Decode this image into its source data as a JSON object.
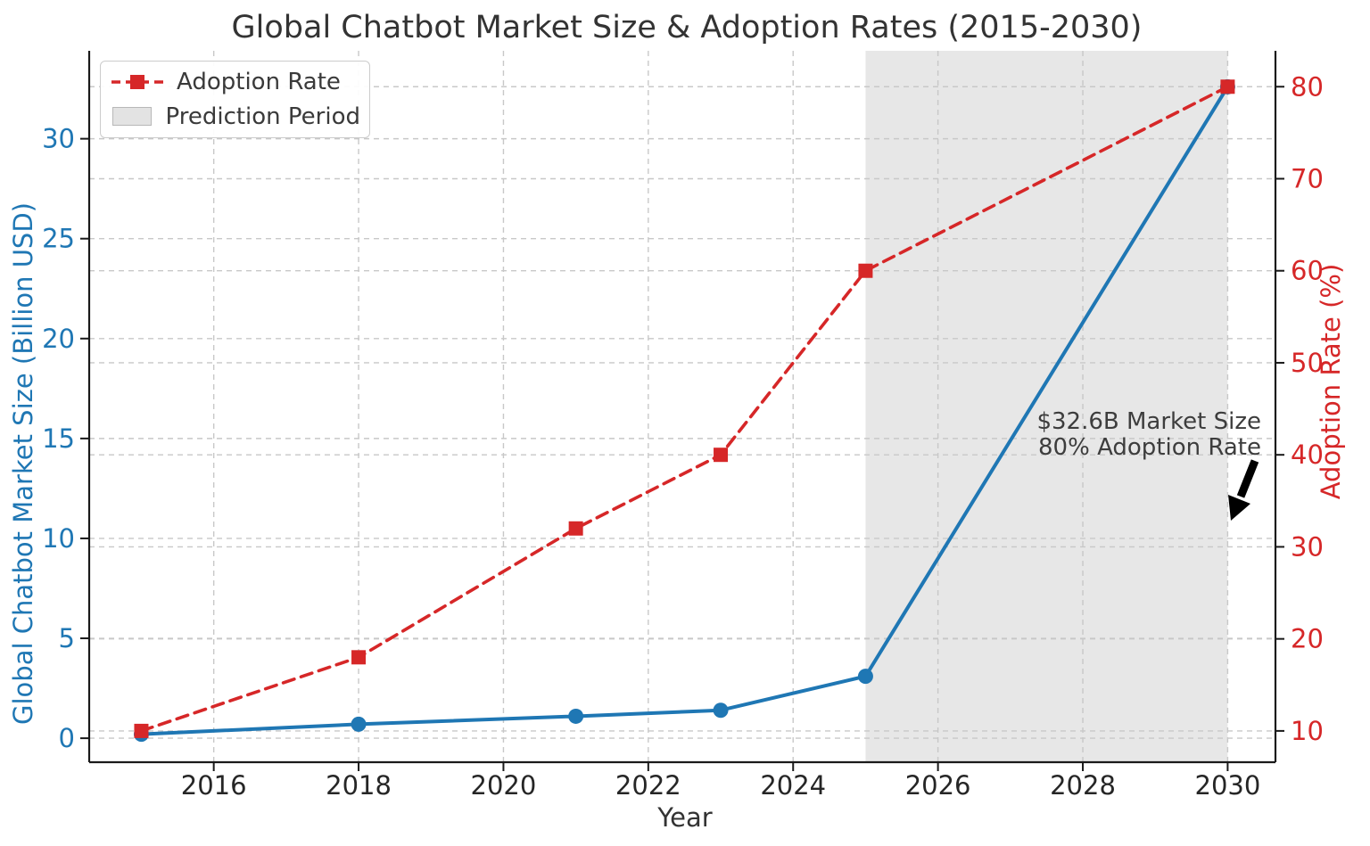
{
  "title": "Global Chatbot Market Size & Adoption Rates (2015-2030)",
  "axes": {
    "xlabel": "Year",
    "ylabel_left": "Global Chatbot Market Size (Billion USD)",
    "ylabel_right": "Adoption Rate (%)"
  },
  "legend": {
    "position": "upper left",
    "items": [
      {
        "label": "Adoption Rate"
      },
      {
        "label": "Prediction Period"
      }
    ]
  },
  "annotation": {
    "line1": "$32.6B Market Size",
    "line2": "80% Adoption Rate"
  },
  "colors": {
    "market_size_line": "#1f77b4",
    "adoption_rate_line": "#d62728",
    "prediction_region": "#e7e7e7",
    "grid": "#c8c8c8",
    "spine": "#1a1a1a",
    "x_tick_text": "#262626",
    "left_tick_text": "#1f77b4",
    "right_tick_text": "#d62728",
    "title_text": "#333333",
    "annotation_text": "#3d3d3d",
    "annotation_arrow": "#000000"
  },
  "chart_data": {
    "type": "line",
    "x": [
      2015,
      2018,
      2021,
      2023,
      2025,
      2030
    ],
    "series": [
      {
        "name": "Market Size",
        "axis": "left",
        "color": "#1f77b4",
        "style": "solid",
        "marker": "circle",
        "values": [
          0.2,
          0.7,
          1.1,
          1.4,
          3.1,
          32.6
        ]
      },
      {
        "name": "Adoption Rate",
        "axis": "right",
        "color": "#d62728",
        "style": "dashed",
        "marker": "square",
        "values": [
          10,
          18,
          32,
          40,
          60,
          80
        ]
      }
    ],
    "prediction_period": {
      "start": 2025,
      "end": 2030
    },
    "xticks": [
      2016,
      2018,
      2020,
      2022,
      2024,
      2026,
      2028,
      2030
    ],
    "yticks_left": [
      0,
      5,
      10,
      15,
      20,
      25,
      30
    ],
    "yticks_right": [
      10,
      20,
      30,
      40,
      50,
      60,
      70,
      80
    ],
    "xlim": [
      2014.28,
      2030.66
    ],
    "ylim_left": [
      -1.2,
      34.4
    ],
    "ylim_right": [
      6.6,
      83.9
    ],
    "grid": true,
    "legend_position": "upper left",
    "title": "Global Chatbot Market Size & Adoption Rates (2015-2030)",
    "xlabel": "Year",
    "ylabel": "Global Chatbot Market Size (Billion USD)",
    "ylabel_right": "Adoption Rate (%)"
  }
}
